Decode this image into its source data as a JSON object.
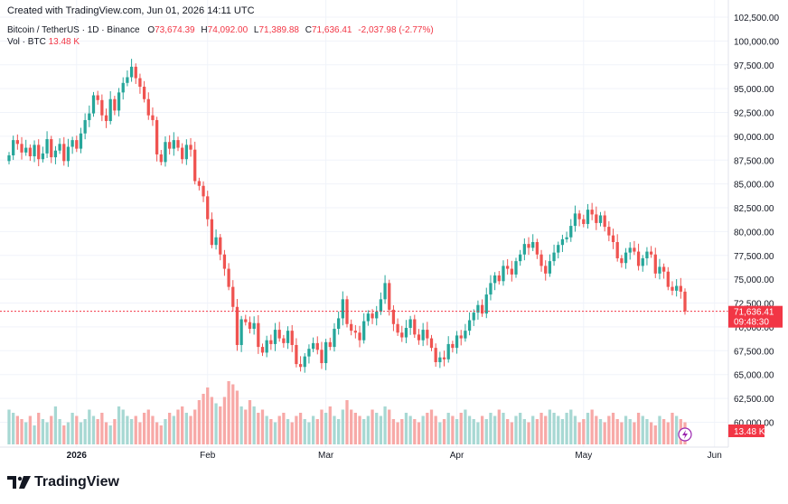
{
  "header": {
    "created": "Created with TradingView.com, Jun 01, 2026 14:11 UTC"
  },
  "legend": {
    "symbol": "Bitcoin / TetherUS · 1D · Binance",
    "o_label": "O",
    "o_value": "73,674.39",
    "h_label": "H",
    "h_value": "74,092.00",
    "l_label": "L",
    "l_value": "71,389.88",
    "c_label": "C",
    "c_value": "71,636.41",
    "change": "-2,037.98 (-2.77%)"
  },
  "volume_legend": {
    "label": "Vol · BTC",
    "value": "13.48 K"
  },
  "footer": {
    "brand": "TradingView"
  },
  "colors": {
    "up": "#26a69a",
    "down": "#ef5350",
    "up_vol": "#a7d8d3",
    "down_vol": "#f7a9a7",
    "price_label_bg": "#f23645",
    "grid": "#f0f3fa",
    "text": "#131722"
  },
  "chart_data": {
    "type": "candlestick",
    "ylim": [
      59000,
      102500
    ],
    "y_ticks": [
      {
        "value": 102500,
        "label": "102,500.00"
      },
      {
        "value": 100000,
        "label": "100,000.00"
      },
      {
        "value": 97500,
        "label": "97,500.00"
      },
      {
        "value": 95000,
        "label": "95,000.00"
      },
      {
        "value": 92500,
        "label": "92,500.00"
      },
      {
        "value": 90000,
        "label": "90,000.00"
      },
      {
        "value": 87500,
        "label": "87,500.00"
      },
      {
        "value": 85000,
        "label": "85,000.00"
      },
      {
        "value": 82500,
        "label": "82,500.00"
      },
      {
        "value": 80000,
        "label": "80,000.00"
      },
      {
        "value": 77500,
        "label": "77,500.00"
      },
      {
        "value": 75000,
        "label": "75,000.00"
      },
      {
        "value": 72500,
        "label": "72,500.00"
      },
      {
        "value": 70000,
        "label": "70,000.00"
      },
      {
        "value": 67500,
        "label": "67,500.00"
      },
      {
        "value": 65000,
        "label": "65,000.00"
      },
      {
        "value": 62500,
        "label": "62,500.00"
      },
      {
        "value": 60000,
        "label": "60,000.00"
      }
    ],
    "x_ticks": [
      {
        "label": "2026",
        "index": 16,
        "bold": true
      },
      {
        "label": "Feb",
        "index": 47,
        "bold": false
      },
      {
        "label": "Mar",
        "index": 75,
        "bold": false
      },
      {
        "label": "Apr",
        "index": 106,
        "bold": false
      },
      {
        "label": "May",
        "index": 136,
        "bold": false
      },
      {
        "label": "Jun",
        "index": 167,
        "bold": false
      }
    ],
    "last_price_label": "71,636.41",
    "countdown_label": "09:48:30",
    "last_volume_label": "13.48 K",
    "closes": [
      88000,
      89600,
      89200,
      88300,
      88800,
      87900,
      89100,
      87600,
      88200,
      89700,
      87800,
      88500,
      89200,
      87400,
      88900,
      89600,
      88700,
      90300,
      91700,
      92400,
      94300,
      93800,
      92200,
      91600,
      93900,
      92700,
      94600,
      95600,
      96200,
      97300,
      96100,
      95200,
      93900,
      92200,
      91700,
      88100,
      87300,
      89400,
      88700,
      89600,
      88800,
      87600,
      89100,
      88600,
      85300,
      84800,
      83700,
      81300,
      78600,
      79400,
      77600,
      76100,
      74200,
      72100,
      68100,
      70800,
      70500,
      69800,
      70400,
      67900,
      67300,
      68600,
      68200,
      69700,
      68800,
      68300,
      69600,
      68100,
      66100,
      65800,
      66900,
      67700,
      68300,
      67600,
      66200,
      68400,
      67900,
      69800,
      70900,
      72900,
      70300,
      69600,
      69400,
      68600,
      70600,
      71400,
      70900,
      71600,
      72900,
      74600,
      71800,
      70300,
      69400,
      68900,
      69900,
      70800,
      69200,
      68600,
      69700,
      68800,
      67800,
      66300,
      66800,
      66600,
      68200,
      67800,
      69100,
      68800,
      69600,
      70700,
      71500,
      72300,
      71400,
      73400,
      74600,
      75400,
      74800,
      76400,
      76100,
      75500,
      76900,
      77600,
      78700,
      78300,
      78900,
      77600,
      76400,
      75600,
      76900,
      77800,
      78600,
      79200,
      79400,
      80600,
      81900,
      81300,
      80800,
      82300,
      81800,
      80900,
      81700,
      80500,
      79600,
      78900,
      77200,
      76700,
      77800,
      78300,
      77900,
      76400,
      77200,
      77900,
      77600,
      75600,
      76300,
      75800,
      74200,
      73800,
      74300,
      73700,
      71636
    ],
    "vol_ratios": [
      0.55,
      0.5,
      0.45,
      0.4,
      0.35,
      0.45,
      0.3,
      0.5,
      0.4,
      0.35,
      0.45,
      0.6,
      0.4,
      0.3,
      0.35,
      0.5,
      0.45,
      0.35,
      0.4,
      0.55,
      0.45,
      0.4,
      0.5,
      0.35,
      0.3,
      0.4,
      0.6,
      0.55,
      0.45,
      0.4,
      0.45,
      0.35,
      0.5,
      0.55,
      0.45,
      0.35,
      0.3,
      0.4,
      0.5,
      0.45,
      0.55,
      0.6,
      0.5,
      0.45,
      0.55,
      0.7,
      0.8,
      0.9,
      0.75,
      0.65,
      0.6,
      0.75,
      1.0,
      0.95,
      0.85,
      0.6,
      0.55,
      0.7,
      0.6,
      0.5,
      0.55,
      0.45,
      0.4,
      0.35,
      0.45,
      0.5,
      0.4,
      0.35,
      0.45,
      0.5,
      0.4,
      0.35,
      0.45,
      0.4,
      0.55,
      0.5,
      0.6,
      0.45,
      0.4,
      0.55,
      0.7,
      0.55,
      0.5,
      0.45,
      0.4,
      0.45,
      0.55,
      0.5,
      0.45,
      0.6,
      0.55,
      0.4,
      0.35,
      0.4,
      0.5,
      0.45,
      0.4,
      0.35,
      0.45,
      0.5,
      0.55,
      0.45,
      0.35,
      0.4,
      0.5,
      0.45,
      0.4,
      0.5,
      0.55,
      0.45,
      0.4,
      0.35,
      0.45,
      0.4,
      0.5,
      0.45,
      0.55,
      0.5,
      0.4,
      0.35,
      0.45,
      0.5,
      0.4,
      0.35,
      0.45,
      0.4,
      0.5,
      0.45,
      0.55,
      0.5,
      0.45,
      0.4,
      0.5,
      0.55,
      0.45,
      0.35,
      0.4,
      0.5,
      0.55,
      0.45,
      0.4,
      0.35,
      0.45,
      0.5,
      0.4,
      0.35,
      0.45,
      0.4,
      0.35,
      0.5,
      0.45,
      0.4,
      0.35,
      0.3,
      0.45,
      0.4,
      0.35,
      0.5,
      0.45,
      0.4,
      0.35,
      0.4,
      0.45,
      0.5,
      0.55,
      0.45,
      0.35,
      0.3,
      0.35,
      0.4,
      0.3,
      0.35,
      0.3
    ]
  }
}
